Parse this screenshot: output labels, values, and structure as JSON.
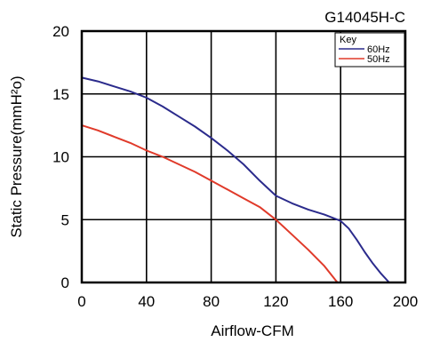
{
  "chart_data": {
    "type": "line",
    "title": "G14045H-C",
    "xlabel": "Airflow-CFM",
    "ylabel": "Static Pressure(mmH²o)",
    "xlim": [
      0,
      200
    ],
    "ylim": [
      0,
      20
    ],
    "xticks": [
      0,
      40,
      80,
      120,
      160,
      200
    ],
    "yticks": [
      0,
      5,
      10,
      15,
      20
    ],
    "x_tick_labels": [
      "0",
      "40",
      "80",
      "120",
      "160",
      "200"
    ],
    "y_tick_labels": [
      "0",
      "5",
      "10",
      "15",
      "20"
    ],
    "grid": true,
    "legend": {
      "title": "Key",
      "position": "top-right"
    },
    "series": [
      {
        "name": "60Hz",
        "color": "#2b2b8c",
        "points": [
          [
            0,
            16.3
          ],
          [
            10,
            16.0
          ],
          [
            20,
            15.6
          ],
          [
            30,
            15.2
          ],
          [
            40,
            14.7
          ],
          [
            50,
            14.0
          ],
          [
            60,
            13.2
          ],
          [
            70,
            12.4
          ],
          [
            80,
            11.5
          ],
          [
            90,
            10.5
          ],
          [
            100,
            9.4
          ],
          [
            110,
            8.1
          ],
          [
            120,
            6.9
          ],
          [
            130,
            6.3
          ],
          [
            140,
            5.8
          ],
          [
            150,
            5.4
          ],
          [
            160,
            4.9
          ],
          [
            165,
            4.3
          ],
          [
            170,
            3.4
          ],
          [
            175,
            2.4
          ],
          [
            180,
            1.5
          ],
          [
            185,
            0.7
          ],
          [
            190,
            0
          ]
        ]
      },
      {
        "name": "50Hz",
        "color": "#e03a2a",
        "points": [
          [
            0,
            12.5
          ],
          [
            10,
            12.1
          ],
          [
            20,
            11.6
          ],
          [
            30,
            11.1
          ],
          [
            40,
            10.5
          ],
          [
            50,
            10.0
          ],
          [
            60,
            9.4
          ],
          [
            70,
            8.8
          ],
          [
            80,
            8.1
          ],
          [
            90,
            7.4
          ],
          [
            100,
            6.7
          ],
          [
            110,
            6.0
          ],
          [
            120,
            5.0
          ],
          [
            130,
            3.8
          ],
          [
            140,
            2.6
          ],
          [
            150,
            1.3
          ],
          [
            158,
            0
          ]
        ]
      }
    ]
  }
}
